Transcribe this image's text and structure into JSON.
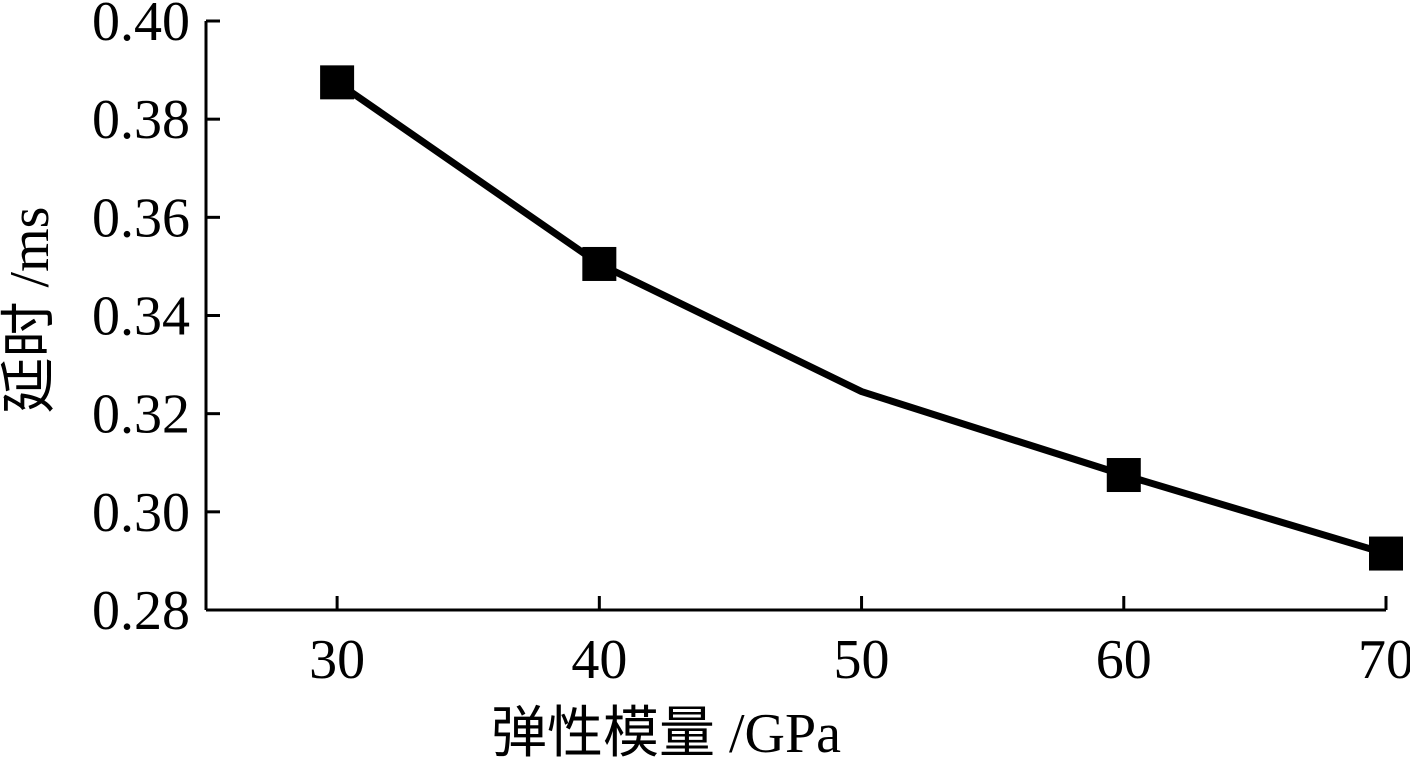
{
  "chart_data": {
    "type": "line",
    "xlabel": "弹性模量 /GPa",
    "ylabel": "延时 /ms",
    "xlim": [
      25,
      70
    ],
    "ylim": [
      0.28,
      0.4
    ],
    "xticks": [
      30,
      40,
      50,
      60,
      70
    ],
    "xtick_labels": [
      "30",
      "40",
      "50",
      "60",
      "70"
    ],
    "yticks": [
      0.28,
      0.3,
      0.32,
      0.34,
      0.36,
      0.38,
      0.4
    ],
    "ytick_labels": [
      "0.28",
      "0.30",
      "0.32",
      "0.34",
      "0.36",
      "0.38",
      "0.40"
    ],
    "grid": false,
    "series": [
      {
        "color": "#000000",
        "marker": "square",
        "points": [
          {
            "x": 30,
            "y": 0.3875,
            "marker": true
          },
          {
            "x": 40,
            "y": 0.3505,
            "marker": true
          },
          {
            "x": 50,
            "y": 0.3245,
            "marker": false
          },
          {
            "x": 60,
            "y": 0.3075,
            "marker": true
          },
          {
            "x": 70,
            "y": 0.2915,
            "marker": true
          }
        ]
      }
    ]
  }
}
